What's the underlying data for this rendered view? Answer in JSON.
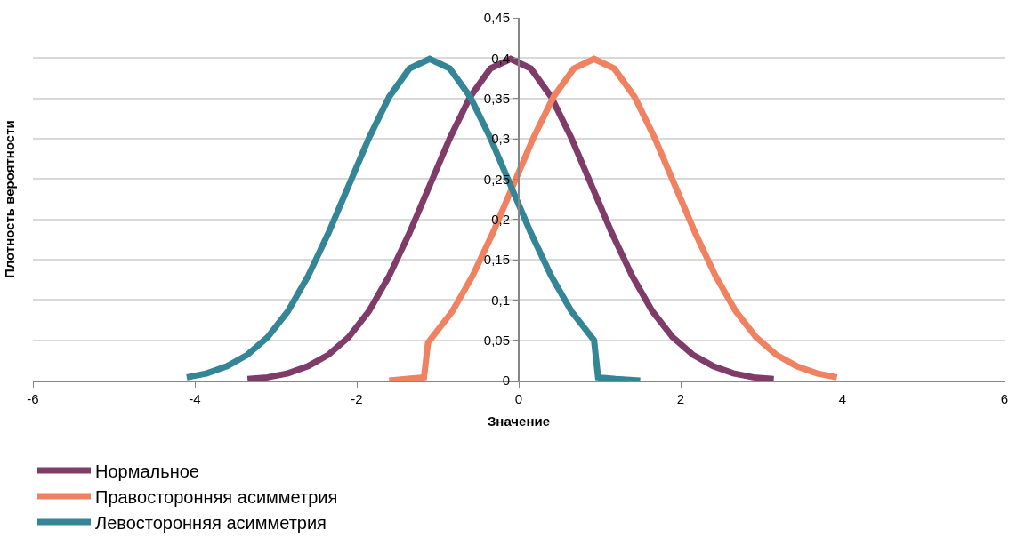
{
  "chart_data": {
    "type": "line",
    "xlabel": "Значение",
    "ylabel": "Плотность вероятности",
    "xlim": [
      -6,
      6
    ],
    "xticks": [
      -6,
      -4,
      -2,
      0,
      2,
      4,
      6
    ],
    "ylim": [
      0,
      0.45
    ],
    "yticks": [
      {
        "value": 0,
        "label": "0"
      },
      {
        "value": 0.05,
        "label": "0,05"
      },
      {
        "value": 0.1,
        "label": "0,1"
      },
      {
        "value": 0.15,
        "label": "0,15"
      },
      {
        "value": 0.2,
        "label": "0,2"
      },
      {
        "value": 0.25,
        "label": "0,25"
      },
      {
        "value": 0.3,
        "label": "0,3"
      },
      {
        "value": 0.35,
        "label": "0,35"
      },
      {
        "value": 0.4,
        "label": "0,4"
      },
      {
        "value": 0.45,
        "label": "0,45"
      }
    ],
    "grid": "y",
    "legend": "bottom left",
    "marker": "none",
    "line_style": "solid",
    "series": [
      {
        "name": "Нормальное",
        "color": "#7f3c68",
        "x": [
          -3.35,
          -3.1,
          -2.85,
          -2.6,
          -2.35,
          -2.1,
          -1.85,
          -1.6,
          -1.35,
          -1.1,
          -0.85,
          -0.6,
          -0.35,
          -0.1,
          0.15,
          0.4,
          0.65,
          0.9,
          1.15,
          1.4,
          1.65,
          1.9,
          2.15,
          2.4,
          2.65,
          2.9,
          3.15
        ],
        "values": [
          0.002,
          0.004,
          0.009,
          0.018,
          0.032,
          0.054,
          0.086,
          0.13,
          0.183,
          0.242,
          0.301,
          0.352,
          0.387,
          0.399,
          0.387,
          0.352,
          0.301,
          0.242,
          0.183,
          0.13,
          0.086,
          0.054,
          0.032,
          0.018,
          0.009,
          0.004,
          0.002
        ]
      },
      {
        "name": "Правосторонняя асимметрия",
        "color": "#f08262",
        "x": [
          -1.6,
          -1.4,
          -1.17,
          -1.12,
          -0.82,
          -0.57,
          -0.32,
          -0.07,
          0.18,
          0.43,
          0.68,
          0.93,
          1.18,
          1.43,
          1.68,
          1.93,
          2.18,
          2.43,
          2.68,
          2.93,
          3.18,
          3.43,
          3.68,
          3.93
        ],
        "values": [
          0,
          0.002,
          0.004,
          0.047,
          0.086,
          0.13,
          0.183,
          0.242,
          0.301,
          0.352,
          0.387,
          0.399,
          0.387,
          0.352,
          0.301,
          0.242,
          0.183,
          0.13,
          0.086,
          0.054,
          0.032,
          0.018,
          0.009,
          0.004
        ]
      },
      {
        "name": "Левосторонняя асимметрия",
        "color": "#348595",
        "x": [
          -4.1,
          -3.85,
          -3.6,
          -3.35,
          -3.1,
          -2.85,
          -2.6,
          -2.35,
          -2.1,
          -1.85,
          -1.6,
          -1.35,
          -1.1,
          -0.85,
          -0.6,
          -0.35,
          -0.1,
          0.15,
          0.4,
          0.65,
          0.93,
          0.98,
          1.2,
          1.5
        ],
        "values": [
          0.004,
          0.009,
          0.018,
          0.032,
          0.054,
          0.086,
          0.13,
          0.183,
          0.242,
          0.301,
          0.352,
          0.387,
          0.399,
          0.387,
          0.352,
          0.301,
          0.242,
          0.183,
          0.13,
          0.086,
          0.05,
          0.004,
          0.002,
          0
        ]
      }
    ]
  }
}
